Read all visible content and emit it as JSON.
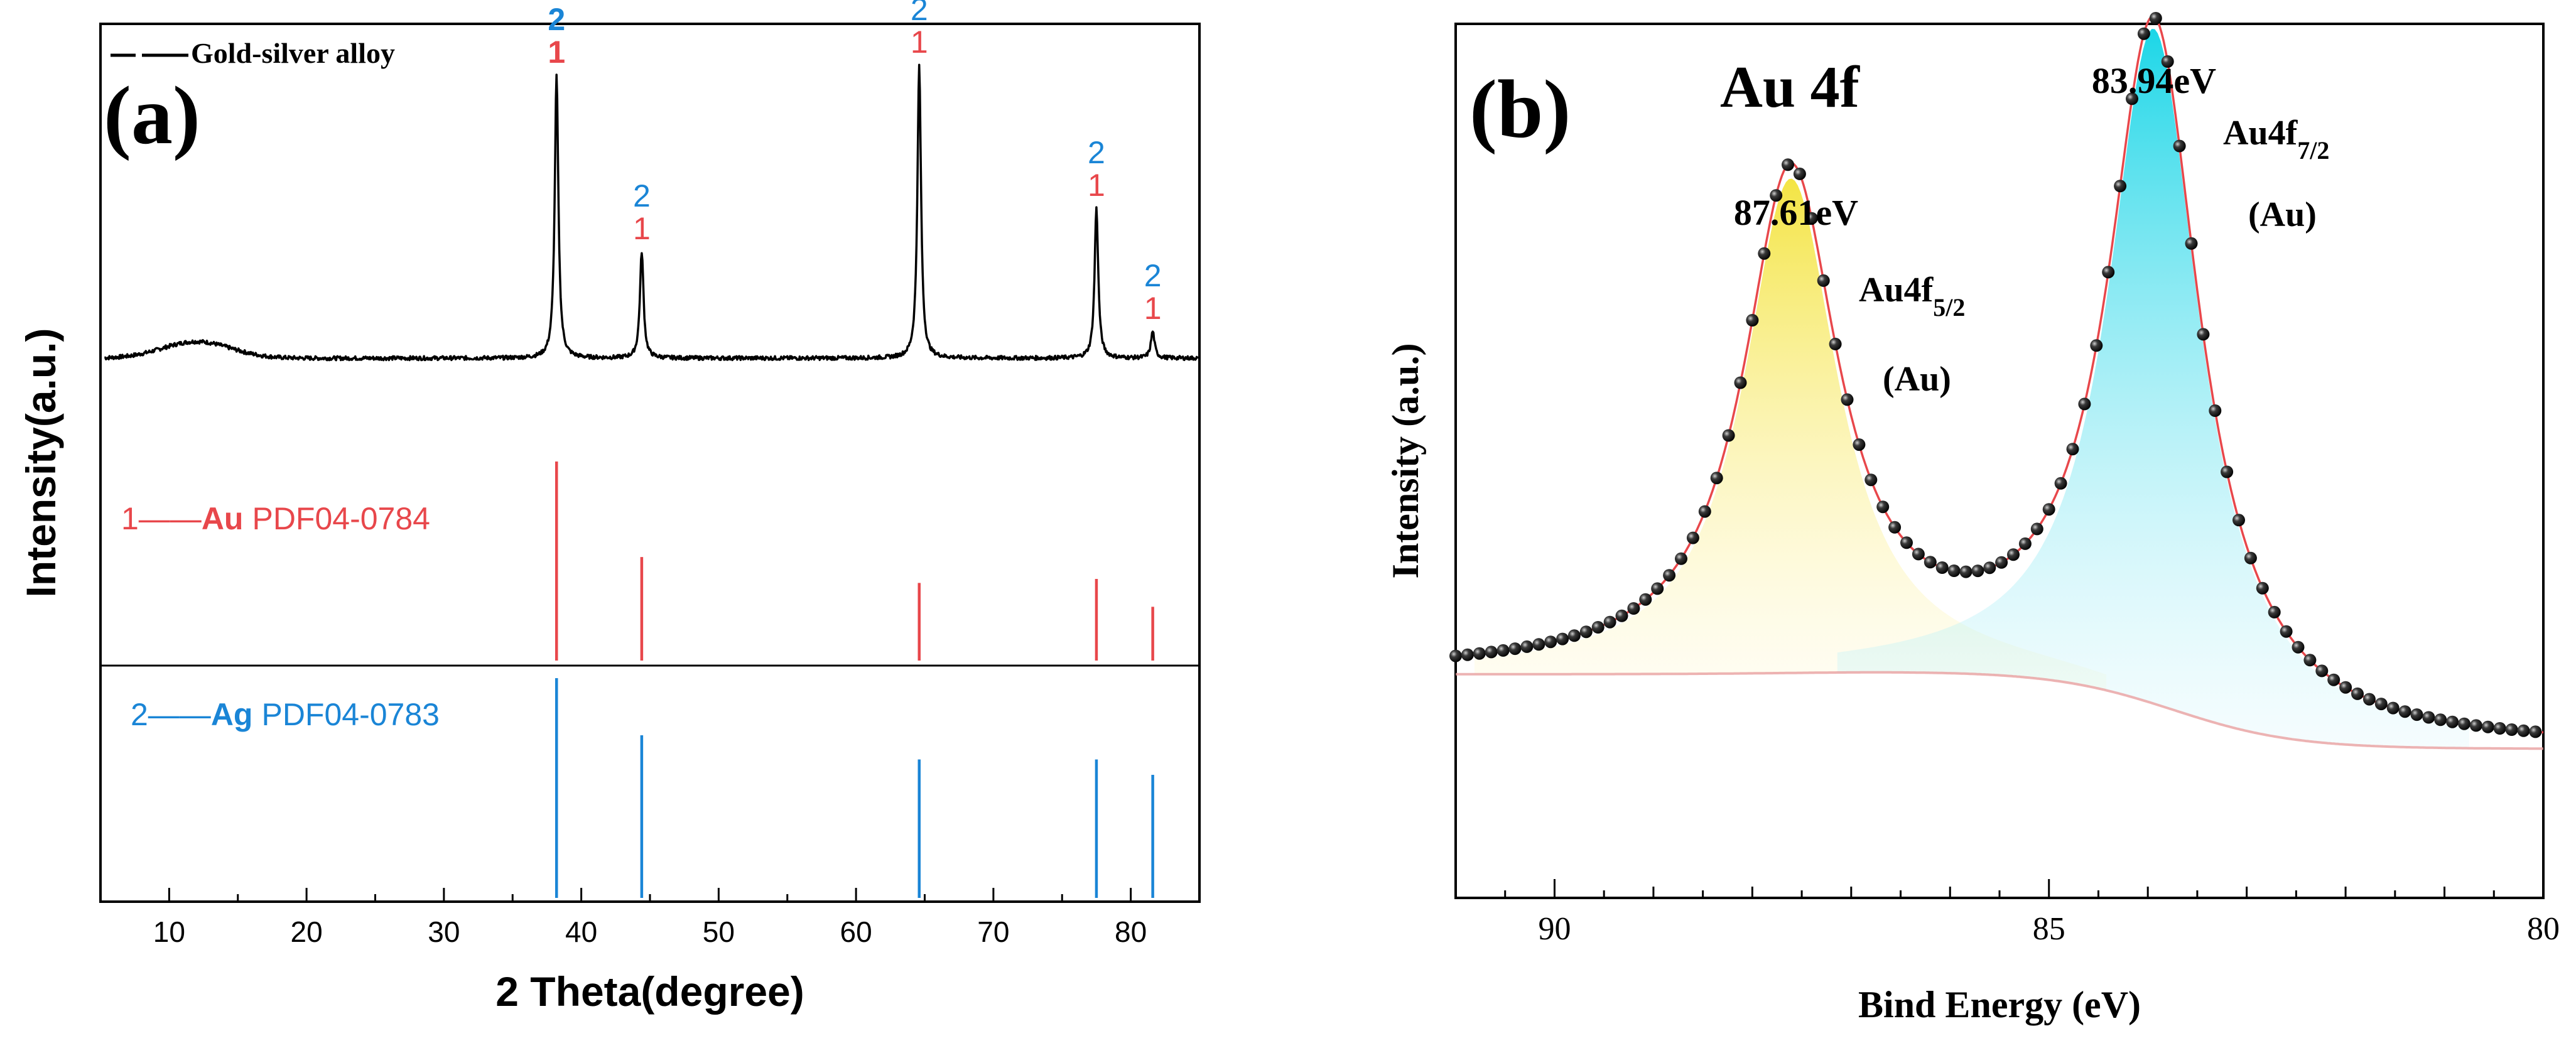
{
  "chart_data": [
    {
      "type": "line",
      "panel_label": "(a)",
      "title": "",
      "xlabel": "2 Theta(degree)",
      "ylabel": "Intensity(a.u.)",
      "xlim": [
        5,
        85
      ],
      "xticks": [
        10,
        20,
        30,
        40,
        50,
        60,
        70,
        80
      ],
      "ylim_relative": [
        0,
        1
      ],
      "series": [
        {
          "name": "Gold-silver alloy",
          "legend_label": "Gold-silver alloy",
          "color": "#000000",
          "baseline_y": 0.15,
          "broad_hump": {
            "center": 12,
            "height": 0.05,
            "width": 3.5
          },
          "peaks": [
            {
              "x": 38.2,
              "y": 0.85
            },
            {
              "x": 44.4,
              "y": 0.32
            },
            {
              "x": 64.6,
              "y": 0.88
            },
            {
              "x": 77.5,
              "y": 0.45
            },
            {
              "x": 81.6,
              "y": 0.08
            }
          ]
        }
      ],
      "peak_labels": [
        {
          "x": 38.2,
          "top": "2",
          "bottom": "1"
        },
        {
          "x": 44.4,
          "top": "2",
          "bottom": "1"
        },
        {
          "x": 64.6,
          "top": "2",
          "bottom": "1"
        },
        {
          "x": 77.5,
          "top": "2",
          "bottom": "1"
        },
        {
          "x": 81.6,
          "top": "2",
          "bottom": "1"
        }
      ],
      "reference_patterns": [
        {
          "index_label": "1——",
          "phase": "Au",
          "card": "PDF04-0784",
          "color": "#e8474b",
          "lines": [
            {
              "x": 38.2,
              "relative_intensity": 1.0
            },
            {
              "x": 44.4,
              "relative_intensity": 0.52
            },
            {
              "x": 64.6,
              "relative_intensity": 0.39
            },
            {
              "x": 77.5,
              "relative_intensity": 0.41
            },
            {
              "x": 81.6,
              "relative_intensity": 0.27
            }
          ]
        },
        {
          "index_label": "2——",
          "phase": "Ag",
          "card": "PDF04-0783",
          "color": "#1a85d6",
          "lines": [
            {
              "x": 38.2,
              "relative_intensity": 1.0
            },
            {
              "x": 44.4,
              "relative_intensity": 0.74
            },
            {
              "x": 64.6,
              "relative_intensity": 0.63
            },
            {
              "x": 77.5,
              "relative_intensity": 0.63
            },
            {
              "x": 81.6,
              "relative_intensity": 0.56
            }
          ]
        }
      ]
    },
    {
      "type": "line",
      "panel_label": "(b)",
      "title": "Au 4f",
      "xlabel": "Bind Energy (eV)",
      "ylabel": "Intensity (a.u.)",
      "xlim": [
        91,
        80
      ],
      "xticks": [
        90,
        85,
        80
      ],
      "x_reversed": true,
      "ylim_relative": [
        0,
        1
      ],
      "background": {
        "left": 0.285,
        "right": 0.19
      },
      "peaks": [
        {
          "name": "Au4f5/2",
          "center": 87.61,
          "height": 0.63,
          "hwhm": 0.58,
          "fill_color": "#f3e33a",
          "label": "87.61eV",
          "assign_main": "Au4f",
          "assign_sub": "5/2",
          "assign_phase": "(Au)"
        },
        {
          "name": "Au4f7/2",
          "center": 83.94,
          "height": 0.86,
          "hwhm": 0.56,
          "fill_color": "#1ad8e8",
          "label": "83.94eV",
          "assign_main": "Au4f",
          "assign_sub": "7/2",
          "assign_phase": "(Au)"
        }
      ],
      "data_point_step": 0.12,
      "fit_color": "#e8474b",
      "point_color": "#000000"
    }
  ]
}
